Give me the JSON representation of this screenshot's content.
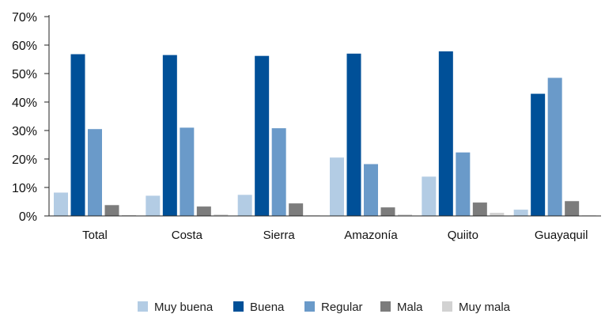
{
  "chart_data": {
    "type": "bar",
    "title": "",
    "xlabel": "",
    "ylabel": "",
    "ylim": [
      0,
      70
    ],
    "yticks": [
      0,
      10,
      20,
      30,
      40,
      50,
      60,
      70
    ],
    "ytick_format": "percent",
    "grid": false,
    "legend_position": "bottom",
    "categories": [
      "Total",
      "Costa",
      "Sierra",
      "Amazonía",
      "Quiito",
      "Guayaquil"
    ],
    "series": [
      {
        "name": "Muy buena",
        "color": "#b3cce4",
        "values": [
          8.2,
          7.1,
          7.4,
          20.5,
          13.8,
          2.2
        ]
      },
      {
        "name": "Buena",
        "color": "#005098",
        "values": [
          56.8,
          56.5,
          56.2,
          57.0,
          57.8,
          42.9
        ]
      },
      {
        "name": "Regular",
        "color": "#6a9ac9",
        "values": [
          30.5,
          31.0,
          30.8,
          18.2,
          22.3,
          48.5
        ]
      },
      {
        "name": "Mala",
        "color": "#7c7c7c",
        "values": [
          3.8,
          3.3,
          4.4,
          3.0,
          4.7,
          5.2
        ]
      },
      {
        "name": "Muy mala",
        "color": "#d2d2d2",
        "values": [
          0.3,
          0.5,
          0.2,
          0.5,
          1.1,
          0.2
        ]
      }
    ]
  }
}
